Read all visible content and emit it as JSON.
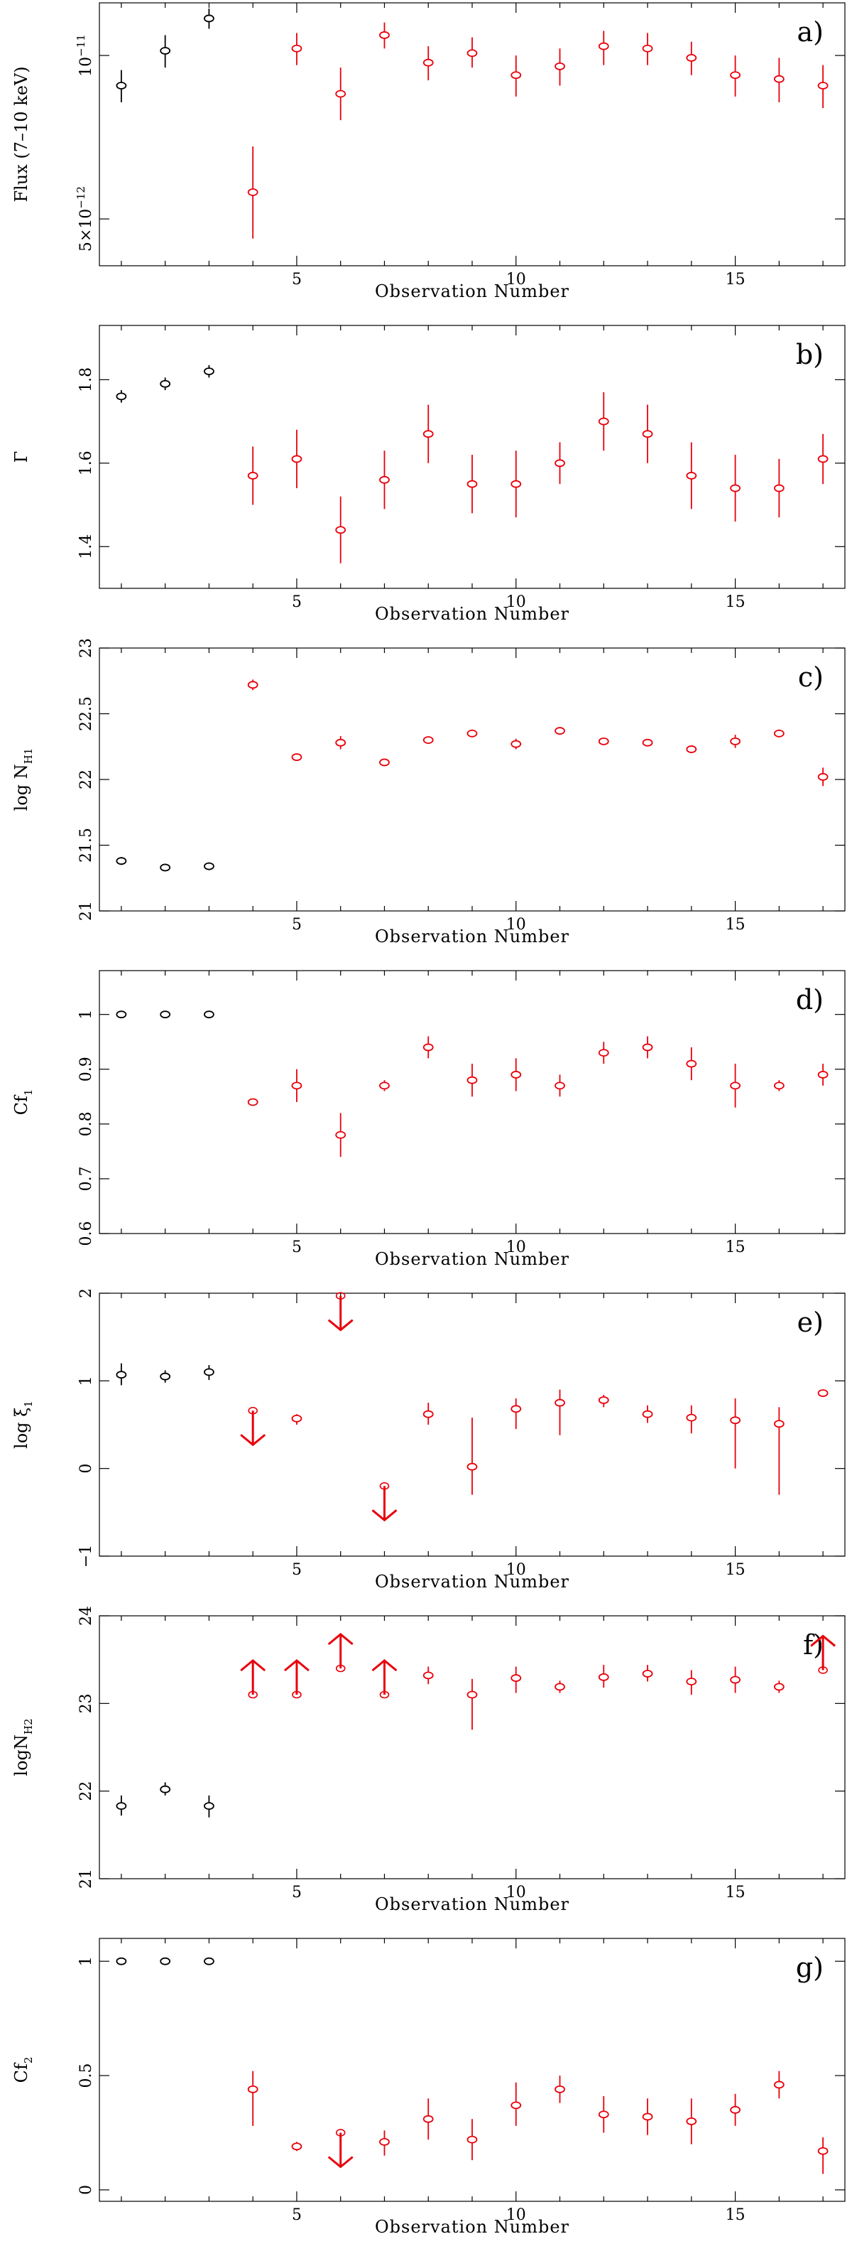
{
  "figure": {
    "colors": {
      "first_obs": "#000000",
      "later_obs": "#e8000b"
    }
  },
  "chart_data": [
    {
      "type": "scatter",
      "panel_label": "a)",
      "xlabel": "Observation Number",
      "ylabel": "Flux (7–10 keV)",
      "yscale": "log",
      "xlim": [
        0.5,
        17.5
      ],
      "ylim": [
        4.1e-12,
        1.25e-11
      ],
      "xticks": [
        5,
        10,
        15
      ],
      "yticks": [
        {
          "value": 1e-11,
          "mantissa": "",
          "base": "10",
          "exp": "−11"
        },
        {
          "value": 5e-12,
          "mantissa": "5×",
          "base": "10",
          "exp": "−12"
        }
      ],
      "x": [
        1,
        2,
        3,
        4,
        5,
        6,
        7,
        8,
        9,
        10,
        11,
        12,
        13,
        14,
        15,
        16,
        17
      ],
      "y": [
        8.8e-12,
        1.02e-11,
        1.17e-11,
        5.6e-12,
        1.03e-11,
        8.5e-12,
        1.09e-11,
        9.7e-12,
        1.01e-11,
        9.2e-12,
        9.55e-12,
        1.04e-11,
        1.03e-11,
        9.9e-12,
        9.2e-12,
        9.05e-12,
        8.8e-12
      ],
      "err_low": [
        8.2e-12,
        9.5e-12,
        1.12e-11,
        4.6e-12,
        9.6e-12,
        7.6e-12,
        1.03e-11,
        9e-12,
        9.5e-12,
        8.4e-12,
        8.8e-12,
        9.6e-12,
        9.6e-12,
        9.2e-12,
        8.4e-12,
        8.2e-12,
        8e-12
      ],
      "err_high": [
        9.4e-12,
        1.09e-11,
        1.22e-11,
        6.8e-12,
        1.1e-11,
        9.5e-12,
        1.15e-11,
        1.04e-11,
        1.08e-11,
        1e-11,
        1.03e-11,
        1.11e-11,
        1.1e-11,
        1.06e-11,
        1e-11,
        9.9e-12,
        9.6e-12
      ],
      "limit": [
        null,
        null,
        null,
        null,
        null,
        null,
        null,
        null,
        null,
        null,
        null,
        null,
        null,
        null,
        null,
        null,
        null
      ]
    },
    {
      "type": "scatter",
      "panel_label": "b)",
      "xlabel": "Observation Number",
      "ylabel": "Γ",
      "yscale": "linear",
      "xlim": [
        0.5,
        17.5
      ],
      "ylim": [
        1.3,
        1.93
      ],
      "xticks": [
        5,
        10,
        15
      ],
      "yticks": [
        {
          "value": 1.4,
          "label": "1.4"
        },
        {
          "value": 1.6,
          "label": "1.6"
        },
        {
          "value": 1.8,
          "label": "1.8"
        }
      ],
      "x": [
        1,
        2,
        3,
        4,
        5,
        6,
        7,
        8,
        9,
        10,
        11,
        12,
        13,
        14,
        15,
        16,
        17
      ],
      "y": [
        1.76,
        1.79,
        1.82,
        1.57,
        1.61,
        1.44,
        1.56,
        1.67,
        1.55,
        1.55,
        1.6,
        1.7,
        1.67,
        1.57,
        1.54,
        1.54,
        1.61
      ],
      "err_low": [
        1.745,
        1.775,
        1.805,
        1.5,
        1.54,
        1.36,
        1.49,
        1.6,
        1.48,
        1.47,
        1.55,
        1.63,
        1.6,
        1.49,
        1.46,
        1.47,
        1.55
      ],
      "err_high": [
        1.775,
        1.805,
        1.835,
        1.64,
        1.68,
        1.52,
        1.63,
        1.74,
        1.62,
        1.63,
        1.65,
        1.77,
        1.74,
        1.65,
        1.62,
        1.61,
        1.67
      ],
      "limit": [
        null,
        null,
        null,
        null,
        null,
        null,
        null,
        null,
        null,
        null,
        null,
        null,
        null,
        null,
        null,
        null,
        null
      ]
    },
    {
      "type": "scatter",
      "panel_label": "c)",
      "xlabel": "Observation Number",
      "ylabel": "log N",
      "ylabel_sub": "H1",
      "yscale": "linear",
      "xlim": [
        0.5,
        17.5
      ],
      "ylim": [
        21.0,
        23.0
      ],
      "xticks": [
        5,
        10,
        15
      ],
      "yticks": [
        {
          "value": 21,
          "label": "21"
        },
        {
          "value": 21.5,
          "label": "21.5"
        },
        {
          "value": 22,
          "label": "22"
        },
        {
          "value": 22.5,
          "label": "22.5"
        },
        {
          "value": 23,
          "label": "23"
        }
      ],
      "x": [
        1,
        2,
        3,
        4,
        5,
        6,
        7,
        8,
        9,
        10,
        11,
        12,
        13,
        14,
        15,
        16,
        17
      ],
      "y": [
        21.38,
        21.33,
        21.34,
        22.72,
        22.17,
        22.28,
        22.13,
        22.3,
        22.35,
        22.27,
        22.37,
        22.29,
        22.28,
        22.23,
        22.29,
        22.35,
        22.02
      ],
      "err_low": [
        21.35,
        21.31,
        21.31,
        22.68,
        22.15,
        22.23,
        22.12,
        22.28,
        22.32,
        22.23,
        22.35,
        22.27,
        22.26,
        22.2,
        22.24,
        22.32,
        21.95
      ],
      "err_high": [
        21.41,
        21.35,
        21.37,
        22.76,
        22.19,
        22.33,
        22.14,
        22.32,
        22.38,
        22.31,
        22.39,
        22.31,
        22.3,
        22.26,
        22.34,
        22.38,
        22.09
      ],
      "limit": [
        null,
        null,
        null,
        null,
        null,
        null,
        null,
        null,
        null,
        null,
        null,
        null,
        null,
        null,
        null,
        null,
        null
      ]
    },
    {
      "type": "scatter",
      "panel_label": "d)",
      "xlabel": "Observation Number",
      "ylabel": "Cf",
      "ylabel_sub": "1",
      "yscale": "linear",
      "xlim": [
        0.5,
        17.5
      ],
      "ylim": [
        0.6,
        1.08
      ],
      "xticks": [
        5,
        10,
        15
      ],
      "yticks": [
        {
          "value": 0.6,
          "label": "0.6"
        },
        {
          "value": 0.7,
          "label": "0.7"
        },
        {
          "value": 0.8,
          "label": "0.8"
        },
        {
          "value": 0.9,
          "label": "0.9"
        },
        {
          "value": 1,
          "label": "1"
        }
      ],
      "x": [
        1,
        2,
        3,
        4,
        5,
        6,
        7,
        8,
        9,
        10,
        11,
        12,
        13,
        14,
        15,
        16,
        17
      ],
      "y": [
        1.0,
        1.0,
        1.0,
        0.84,
        0.87,
        0.78,
        0.87,
        0.94,
        0.88,
        0.89,
        0.87,
        0.93,
        0.94,
        0.91,
        0.87,
        0.87,
        0.89
      ],
      "err_low": [
        1.0,
        1.0,
        1.0,
        0.835,
        0.84,
        0.74,
        0.86,
        0.92,
        0.85,
        0.86,
        0.85,
        0.91,
        0.92,
        0.88,
        0.83,
        0.86,
        0.87
      ],
      "err_high": [
        1.0,
        1.0,
        1.0,
        0.845,
        0.9,
        0.82,
        0.88,
        0.96,
        0.91,
        0.92,
        0.89,
        0.95,
        0.96,
        0.94,
        0.91,
        0.88,
        0.91
      ],
      "limit": [
        null,
        null,
        null,
        null,
        null,
        null,
        null,
        null,
        null,
        null,
        null,
        null,
        null,
        null,
        null,
        null,
        null
      ]
    },
    {
      "type": "scatter",
      "panel_label": "e)",
      "xlabel": "Observation Number",
      "ylabel": "log ξ",
      "ylabel_sub": "1",
      "yscale": "linear",
      "xlim": [
        0.5,
        17.5
      ],
      "ylim": [
        -1.0,
        2.0
      ],
      "xticks": [
        5,
        10,
        15
      ],
      "yticks": [
        {
          "value": -1,
          "label": "−1"
        },
        {
          "value": 0,
          "label": "0"
        },
        {
          "value": 1,
          "label": "1"
        },
        {
          "value": 2,
          "label": "2"
        }
      ],
      "x": [
        1,
        2,
        3,
        4,
        5,
        6,
        7,
        8,
        9,
        10,
        11,
        12,
        13,
        14,
        15,
        16,
        17
      ],
      "y": [
        1.07,
        1.05,
        1.1,
        0.66,
        0.57,
        1.97,
        -0.2,
        0.62,
        0.02,
        0.68,
        0.75,
        0.78,
        0.62,
        0.58,
        0.55,
        0.51,
        0.86
      ],
      "err_low": [
        0.95,
        0.98,
        1.01,
        0.66,
        0.5,
        1.97,
        -0.2,
        0.5,
        -0.3,
        0.45,
        0.38,
        0.7,
        0.52,
        0.4,
        0.0,
        -0.3,
        0.85
      ],
      "err_high": [
        1.2,
        1.12,
        1.18,
        0.66,
        0.62,
        1.97,
        -0.2,
        0.75,
        0.58,
        0.8,
        0.9,
        0.84,
        0.72,
        0.72,
        0.8,
        0.7,
        0.87
      ],
      "limit": [
        null,
        null,
        null,
        "upper",
        null,
        "upper",
        "upper",
        null,
        null,
        null,
        null,
        null,
        null,
        null,
        null,
        null,
        null
      ]
    },
    {
      "type": "scatter",
      "panel_label": "f)",
      "xlabel": "Observation Number",
      "ylabel": "logN",
      "ylabel_sub": "H2",
      "yscale": "linear",
      "xlim": [
        0.5,
        17.5
      ],
      "ylim": [
        21.0,
        24.0
      ],
      "xticks": [
        5,
        10,
        15
      ],
      "yticks": [
        {
          "value": 21,
          "label": "21"
        },
        {
          "value": 22,
          "label": "22"
        },
        {
          "value": 23,
          "label": "23"
        },
        {
          "value": 24,
          "label": "24"
        }
      ],
      "x": [
        1,
        2,
        3,
        4,
        5,
        6,
        7,
        8,
        9,
        10,
        11,
        12,
        13,
        14,
        15,
        16,
        17
      ],
      "y": [
        21.83,
        22.02,
        21.83,
        23.1,
        23.1,
        23.4,
        23.1,
        23.32,
        23.1,
        23.29,
        23.19,
        23.3,
        23.34,
        23.25,
        23.27,
        23.19,
        23.38
      ],
      "err_low": [
        21.72,
        21.95,
        21.7,
        23.1,
        23.1,
        23.4,
        23.1,
        23.22,
        22.7,
        23.12,
        23.12,
        23.18,
        23.25,
        23.1,
        23.12,
        23.12,
        23.3
      ],
      "err_high": [
        21.95,
        22.1,
        21.95,
        23.1,
        23.1,
        23.4,
        23.1,
        23.42,
        23.28,
        23.42,
        23.26,
        23.44,
        23.44,
        23.38,
        23.42,
        23.26,
        23.5
      ],
      "limit": [
        null,
        null,
        null,
        "lower",
        "lower",
        "lower",
        "lower",
        null,
        null,
        null,
        null,
        null,
        null,
        null,
        null,
        null,
        "lower"
      ]
    },
    {
      "type": "scatter",
      "panel_label": "g)",
      "xlabel": "Observation Number",
      "ylabel": "Cf",
      "ylabel_sub": "2",
      "yscale": "linear",
      "xlim": [
        0.5,
        17.5
      ],
      "ylim": [
        -0.05,
        1.1
      ],
      "xticks": [
        5,
        10,
        15
      ],
      "yticks": [
        {
          "value": 0,
          "label": "0"
        },
        {
          "value": 0.5,
          "label": "0.5"
        },
        {
          "value": 1,
          "label": "1"
        }
      ],
      "x": [
        1,
        2,
        3,
        4,
        5,
        6,
        7,
        8,
        9,
        10,
        11,
        12,
        13,
        14,
        15,
        16,
        17
      ],
      "y": [
        1.0,
        1.0,
        1.0,
        0.44,
        0.19,
        0.25,
        0.21,
        0.31,
        0.22,
        0.37,
        0.44,
        0.33,
        0.32,
        0.3,
        0.35,
        0.46,
        0.17
      ],
      "err_low": [
        1.0,
        1.0,
        1.0,
        0.28,
        0.17,
        0.25,
        0.15,
        0.22,
        0.13,
        0.28,
        0.38,
        0.25,
        0.24,
        0.2,
        0.28,
        0.4,
        0.07
      ],
      "err_high": [
        1.0,
        1.0,
        1.0,
        0.52,
        0.21,
        0.25,
        0.26,
        0.4,
        0.31,
        0.47,
        0.5,
        0.41,
        0.4,
        0.4,
        0.42,
        0.52,
        0.23
      ],
      "limit": [
        null,
        null,
        null,
        null,
        null,
        "upper",
        null,
        null,
        null,
        null,
        null,
        null,
        null,
        null,
        null,
        null,
        null
      ]
    }
  ]
}
